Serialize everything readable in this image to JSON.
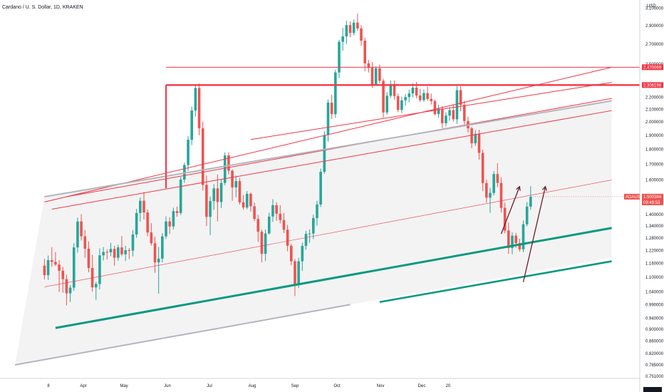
{
  "header": {
    "title": "Cardano / U. S. Dollar, 1D, KRAKEN",
    "currency": "USD"
  },
  "chart_data": {
    "type": "candlestick",
    "symbol": "ADAUSD",
    "y_scale": "log",
    "ylim": [
      0.745,
      3.2
    ],
    "y_ticks": [
      {
        "v": 3.1,
        "label": "3.100000"
      },
      {
        "v": 2.9,
        "label": "2.900000"
      },
      {
        "v": 2.7,
        "label": "2.700000"
      },
      {
        "v": 2.5,
        "label": "2.500000"
      },
      {
        "v": 2.3,
        "label": "2.300000"
      },
      {
        "v": 2.2,
        "label": "2.200000"
      },
      {
        "v": 2.1,
        "label": "2.100000"
      },
      {
        "v": 2.0,
        "label": "2.000000"
      },
      {
        "v": 1.9,
        "label": "1.900000"
      },
      {
        "v": 1.8,
        "label": "1.800000"
      },
      {
        "v": 1.7,
        "label": "1.700000"
      },
      {
        "v": 1.6,
        "label": "1.600000"
      },
      {
        "v": 1.4,
        "label": "1.400000"
      },
      {
        "v": 1.34,
        "label": "1.340000"
      },
      {
        "v": 1.28,
        "label": "1.280000"
      },
      {
        "v": 1.22,
        "label": "1.220000"
      },
      {
        "v": 1.16,
        "label": "1.160000"
      },
      {
        "v": 1.1,
        "label": "1.100000"
      },
      {
        "v": 1.04,
        "label": "1.040000"
      },
      {
        "v": 0.99,
        "label": "0.990000"
      },
      {
        "v": 0.94,
        "label": "0.940000"
      },
      {
        "v": 0.9,
        "label": "0.900000"
      },
      {
        "v": 0.86,
        "label": "0.860000"
      },
      {
        "v": 0.82,
        "label": "0.820000"
      },
      {
        "v": 0.785,
        "label": "0.785000"
      },
      {
        "v": 0.751,
        "label": "0.751000"
      }
    ],
    "x_labels": [
      "8",
      "Apr",
      "May",
      "Jun",
      "Jul",
      "Aug",
      "Sep",
      "Oct",
      "Nov",
      "Dec",
      "20"
    ],
    "colors": {
      "up": "#26a69a",
      "down": "#ef5350",
      "line_red": "#f23645",
      "line_teal": "#089981",
      "line_gray": "#b2b5be",
      "arrow": "#6d1b2b",
      "channel_fill": "#f0f0f0"
    },
    "tags": [
      {
        "label": "2.470069",
        "value": 2.470069
      },
      {
        "label": "2.306198",
        "value": 2.306198
      },
      {
        "label": "ADAUSD",
        "value": 1.500384
      },
      {
        "label": "1.500384",
        "value": 1.500384
      },
      {
        "label": "09:49:53",
        "value": 1.500384
      }
    ],
    "candles": [
      {
        "o": 1.15,
        "h": 1.181,
        "l": 1.091,
        "c": 1.109
      },
      {
        "o": 1.109,
        "h": 1.196,
        "l": 1.089,
        "c": 1.175
      },
      {
        "o": 1.175,
        "h": 1.235,
        "l": 1.146,
        "c": 1.167
      },
      {
        "o": 1.167,
        "h": 1.212,
        "l": 1.149,
        "c": 1.155
      },
      {
        "o": 1.155,
        "h": 1.175,
        "l": 1.039,
        "c": 1.128
      },
      {
        "o": 1.128,
        "h": 1.145,
        "l": 1.036,
        "c": 1.092
      },
      {
        "o": 1.092,
        "h": 1.111,
        "l": 0.987,
        "c": 1.034
      },
      {
        "o": 1.034,
        "h": 1.068,
        "l": 1.0,
        "c": 1.057
      },
      {
        "o": 1.057,
        "h": 1.254,
        "l": 1.044,
        "c": 1.234
      },
      {
        "o": 1.234,
        "h": 1.384,
        "l": 1.209,
        "c": 1.364
      },
      {
        "o": 1.364,
        "h": 1.403,
        "l": 1.267,
        "c": 1.288
      },
      {
        "o": 1.288,
        "h": 1.319,
        "l": 1.186,
        "c": 1.228
      },
      {
        "o": 1.228,
        "h": 1.263,
        "l": 1.121,
        "c": 1.14
      },
      {
        "o": 1.14,
        "h": 1.199,
        "l": 1.041,
        "c": 1.058
      },
      {
        "o": 1.058,
        "h": 1.081,
        "l": 1.008,
        "c": 1.072
      },
      {
        "o": 1.072,
        "h": 1.229,
        "l": 1.05,
        "c": 1.197
      },
      {
        "o": 1.197,
        "h": 1.236,
        "l": 1.174,
        "c": 1.213
      },
      {
        "o": 1.213,
        "h": 1.225,
        "l": 1.178,
        "c": 1.211
      },
      {
        "o": 1.211,
        "h": 1.256,
        "l": 1.193,
        "c": 1.227
      },
      {
        "o": 1.227,
        "h": 1.242,
        "l": 1.15,
        "c": 1.186
      },
      {
        "o": 1.186,
        "h": 1.247,
        "l": 1.172,
        "c": 1.234
      },
      {
        "o": 1.234,
        "h": 1.289,
        "l": 1.193,
        "c": 1.202
      },
      {
        "o": 1.202,
        "h": 1.242,
        "l": 1.171,
        "c": 1.221
      },
      {
        "o": 1.221,
        "h": 1.231,
        "l": 1.18,
        "c": 1.219
      },
      {
        "o": 1.219,
        "h": 1.319,
        "l": 1.192,
        "c": 1.297
      },
      {
        "o": 1.297,
        "h": 1.431,
        "l": 1.281,
        "c": 1.409
      },
      {
        "o": 1.409,
        "h": 1.496,
        "l": 1.363,
        "c": 1.477
      },
      {
        "o": 1.477,
        "h": 1.527,
        "l": 1.374,
        "c": 1.412
      },
      {
        "o": 1.412,
        "h": 1.428,
        "l": 1.288,
        "c": 1.307
      },
      {
        "o": 1.307,
        "h": 1.355,
        "l": 1.243,
        "c": 1.254
      },
      {
        "o": 1.254,
        "h": 1.285,
        "l": 1.119,
        "c": 1.165
      },
      {
        "o": 1.165,
        "h": 1.236,
        "l": 1.033,
        "c": 1.182
      },
      {
        "o": 1.182,
        "h": 1.304,
        "l": 1.165,
        "c": 1.288
      },
      {
        "o": 1.288,
        "h": 1.391,
        "l": 1.275,
        "c": 1.364
      },
      {
        "o": 1.364,
        "h": 1.386,
        "l": 1.3,
        "c": 1.338
      },
      {
        "o": 1.338,
        "h": 1.438,
        "l": 1.322,
        "c": 1.419
      },
      {
        "o": 1.419,
        "h": 1.444,
        "l": 1.389,
        "c": 1.409
      },
      {
        "o": 1.409,
        "h": 1.619,
        "l": 1.398,
        "c": 1.603
      },
      {
        "o": 1.603,
        "h": 1.71,
        "l": 1.583,
        "c": 1.695
      },
      {
        "o": 1.695,
        "h": 1.894,
        "l": 1.657,
        "c": 1.868
      },
      {
        "o": 1.868,
        "h": 2.123,
        "l": 1.83,
        "c": 2.091
      },
      {
        "o": 2.091,
        "h": 2.3,
        "l": 2.042,
        "c": 2.28
      },
      {
        "o": 2.28,
        "h": 2.319,
        "l": 1.901,
        "c": 1.952
      },
      {
        "o": 1.952,
        "h": 2.003,
        "l": 1.536,
        "c": 1.57
      },
      {
        "o": 1.57,
        "h": 1.627,
        "l": 1.34,
        "c": 1.388
      },
      {
        "o": 1.388,
        "h": 1.501,
        "l": 1.294,
        "c": 1.475
      },
      {
        "o": 1.475,
        "h": 1.575,
        "l": 1.426,
        "c": 1.549
      },
      {
        "o": 1.549,
        "h": 1.634,
        "l": 1.364,
        "c": 1.47
      },
      {
        "o": 1.47,
        "h": 1.603,
        "l": 1.436,
        "c": 1.582
      },
      {
        "o": 1.582,
        "h": 1.779,
        "l": 1.568,
        "c": 1.759
      },
      {
        "o": 1.759,
        "h": 1.779,
        "l": 1.634,
        "c": 1.658
      },
      {
        "o": 1.658,
        "h": 1.667,
        "l": 1.477,
        "c": 1.555
      },
      {
        "o": 1.555,
        "h": 1.627,
        "l": 1.497,
        "c": 1.593
      },
      {
        "o": 1.593,
        "h": 1.613,
        "l": 1.456,
        "c": 1.468
      },
      {
        "o": 1.468,
        "h": 1.509,
        "l": 1.427,
        "c": 1.439
      },
      {
        "o": 1.439,
        "h": 1.533,
        "l": 1.429,
        "c": 1.517
      },
      {
        "o": 1.517,
        "h": 1.525,
        "l": 1.416,
        "c": 1.446
      },
      {
        "o": 1.446,
        "h": 1.467,
        "l": 1.366,
        "c": 1.377
      },
      {
        "o": 1.377,
        "h": 1.398,
        "l": 1.261,
        "c": 1.311
      },
      {
        "o": 1.311,
        "h": 1.321,
        "l": 1.165,
        "c": 1.204
      },
      {
        "o": 1.204,
        "h": 1.322,
        "l": 1.171,
        "c": 1.302
      },
      {
        "o": 1.302,
        "h": 1.411,
        "l": 1.298,
        "c": 1.39
      },
      {
        "o": 1.39,
        "h": 1.486,
        "l": 1.362,
        "c": 1.452
      },
      {
        "o": 1.452,
        "h": 1.469,
        "l": 1.367,
        "c": 1.405
      },
      {
        "o": 1.405,
        "h": 1.452,
        "l": 1.353,
        "c": 1.371
      },
      {
        "o": 1.371,
        "h": 1.409,
        "l": 1.304,
        "c": 1.321
      },
      {
        "o": 1.321,
        "h": 1.346,
        "l": 1.216,
        "c": 1.242
      },
      {
        "o": 1.242,
        "h": 1.251,
        "l": 1.152,
        "c": 1.17
      },
      {
        "o": 1.17,
        "h": 1.18,
        "l": 1.023,
        "c": 1.067
      },
      {
        "o": 1.067,
        "h": 1.186,
        "l": 1.055,
        "c": 1.17
      },
      {
        "o": 1.17,
        "h": 1.257,
        "l": 1.127,
        "c": 1.241
      },
      {
        "o": 1.241,
        "h": 1.315,
        "l": 1.223,
        "c": 1.3
      },
      {
        "o": 1.3,
        "h": 1.323,
        "l": 1.257,
        "c": 1.302
      },
      {
        "o": 1.302,
        "h": 1.4,
        "l": 1.274,
        "c": 1.382
      },
      {
        "o": 1.382,
        "h": 1.477,
        "l": 1.342,
        "c": 1.456
      },
      {
        "o": 1.456,
        "h": 1.672,
        "l": 1.442,
        "c": 1.651
      },
      {
        "o": 1.651,
        "h": 1.931,
        "l": 1.638,
        "c": 1.902
      },
      {
        "o": 1.902,
        "h": 2.182,
        "l": 1.853,
        "c": 2.155
      },
      {
        "o": 2.155,
        "h": 2.221,
        "l": 2.024,
        "c": 2.062
      },
      {
        "o": 2.062,
        "h": 2.446,
        "l": 2.033,
        "c": 2.421
      },
      {
        "o": 2.421,
        "h": 2.745,
        "l": 2.368,
        "c": 2.724
      },
      {
        "o": 2.724,
        "h": 2.873,
        "l": 2.633,
        "c": 2.782
      },
      {
        "o": 2.782,
        "h": 2.956,
        "l": 2.7,
        "c": 2.905
      },
      {
        "o": 2.905,
        "h": 2.946,
        "l": 2.774,
        "c": 2.819
      },
      {
        "o": 2.819,
        "h": 2.969,
        "l": 2.792,
        "c": 2.933
      },
      {
        "o": 2.933,
        "h": 3.038,
        "l": 2.841,
        "c": 2.868
      },
      {
        "o": 2.868,
        "h": 2.905,
        "l": 2.685,
        "c": 2.736
      },
      {
        "o": 2.736,
        "h": 2.767,
        "l": 2.431,
        "c": 2.507
      },
      {
        "o": 2.507,
        "h": 2.54,
        "l": 2.42,
        "c": 2.464
      },
      {
        "o": 2.464,
        "h": 2.519,
        "l": 2.283,
        "c": 2.311
      },
      {
        "o": 2.311,
        "h": 2.48,
        "l": 2.3,
        "c": 2.46
      },
      {
        "o": 2.46,
        "h": 2.496,
        "l": 2.321,
        "c": 2.344
      },
      {
        "o": 2.344,
        "h": 2.363,
        "l": 2.034,
        "c": 2.075
      },
      {
        "o": 2.075,
        "h": 2.244,
        "l": 2.058,
        "c": 2.213
      },
      {
        "o": 2.213,
        "h": 2.348,
        "l": 2.195,
        "c": 2.313
      },
      {
        "o": 2.313,
        "h": 2.347,
        "l": 2.181,
        "c": 2.21
      },
      {
        "o": 2.21,
        "h": 2.232,
        "l": 2.077,
        "c": 2.096
      },
      {
        "o": 2.096,
        "h": 2.205,
        "l": 2.07,
        "c": 2.175
      },
      {
        "o": 2.175,
        "h": 2.227,
        "l": 2.132,
        "c": 2.202
      },
      {
        "o": 2.202,
        "h": 2.266,
        "l": 2.157,
        "c": 2.233
      },
      {
        "o": 2.233,
        "h": 2.323,
        "l": 2.199,
        "c": 2.283
      },
      {
        "o": 2.283,
        "h": 2.334,
        "l": 2.191,
        "c": 2.215
      },
      {
        "o": 2.215,
        "h": 2.272,
        "l": 2.16,
        "c": 2.176
      },
      {
        "o": 2.176,
        "h": 2.268,
        "l": 2.162,
        "c": 2.236
      },
      {
        "o": 2.236,
        "h": 2.292,
        "l": 2.17,
        "c": 2.186
      },
      {
        "o": 2.186,
        "h": 2.231,
        "l": 2.139,
        "c": 2.167
      },
      {
        "o": 2.167,
        "h": 2.181,
        "l": 2.052,
        "c": 2.062
      },
      {
        "o": 2.062,
        "h": 2.138,
        "l": 2.033,
        "c": 2.104
      },
      {
        "o": 2.104,
        "h": 2.126,
        "l": 1.955,
        "c": 1.991
      },
      {
        "o": 1.991,
        "h": 2.076,
        "l": 1.965,
        "c": 2.05
      },
      {
        "o": 2.05,
        "h": 2.121,
        "l": 2.01,
        "c": 2.094
      },
      {
        "o": 2.094,
        "h": 2.139,
        "l": 2.003,
        "c": 2.021
      },
      {
        "o": 2.021,
        "h": 2.297,
        "l": 1.985,
        "c": 2.261
      },
      {
        "o": 2.261,
        "h": 2.295,
        "l": 2.084,
        "c": 2.136
      },
      {
        "o": 2.136,
        "h": 2.17,
        "l": 1.982,
        "c": 2.008
      },
      {
        "o": 2.008,
        "h": 2.043,
        "l": 1.921,
        "c": 1.952
      },
      {
        "o": 1.952,
        "h": 1.962,
        "l": 1.808,
        "c": 1.843
      },
      {
        "o": 1.843,
        "h": 1.939,
        "l": 1.824,
        "c": 1.911
      },
      {
        "o": 1.911,
        "h": 1.941,
        "l": 1.731,
        "c": 1.776
      },
      {
        "o": 1.776,
        "h": 1.798,
        "l": 1.533,
        "c": 1.581
      },
      {
        "o": 1.581,
        "h": 1.603,
        "l": 1.466,
        "c": 1.495
      },
      {
        "o": 1.495,
        "h": 1.552,
        "l": 1.409,
        "c": 1.522
      },
      {
        "o": 1.522,
        "h": 1.655,
        "l": 1.508,
        "c": 1.637
      },
      {
        "o": 1.637,
        "h": 1.707,
        "l": 1.557,
        "c": 1.582
      },
      {
        "o": 1.582,
        "h": 1.615,
        "l": 1.412,
        "c": 1.437
      },
      {
        "o": 1.437,
        "h": 1.466,
        "l": 1.303,
        "c": 1.317
      },
      {
        "o": 1.317,
        "h": 1.359,
        "l": 1.204,
        "c": 1.231
      },
      {
        "o": 1.231,
        "h": 1.308,
        "l": 1.202,
        "c": 1.291
      },
      {
        "o": 1.291,
        "h": 1.305,
        "l": 1.232,
        "c": 1.255
      },
      {
        "o": 1.255,
        "h": 1.276,
        "l": 1.214,
        "c": 1.225
      },
      {
        "o": 1.225,
        "h": 1.369,
        "l": 1.212,
        "c": 1.349
      },
      {
        "o": 1.349,
        "h": 1.47,
        "l": 1.338,
        "c": 1.444
      },
      {
        "o": 1.444,
        "h": 1.562,
        "l": 1.427,
        "c": 1.5
      }
    ],
    "lines": [
      {
        "kind": "red",
        "a": [
          0,
          1.47
        ],
        "b": [
          154,
          2.47
        ],
        "w": 1
      },
      {
        "kind": "red",
        "a": [
          0,
          1.06
        ],
        "b": [
          154,
          1.6
        ],
        "w": 0.6
      },
      {
        "kind": "red",
        "a": [
          2,
          1.43
        ],
        "b": [
          154,
          2.09
        ],
        "w": 1
      },
      {
        "kind": "red",
        "a": [
          56,
          1.87
        ],
        "b": [
          154,
          2.33
        ],
        "w": 1
      },
      {
        "kind": "red",
        "a": [
          6,
          1.5
        ],
        "b": [
          154,
          2.19
        ],
        "w": 1
      },
      {
        "kind": "redlevel",
        "value": 2.470069,
        "from": 33,
        "w": 1
      },
      {
        "kind": "redlevel",
        "value": 2.306198,
        "from": 33,
        "w": 2.4
      },
      {
        "kind": "gray",
        "a": [
          -8,
          0.785
        ],
        "b": [
          83,
          0.99
        ],
        "w": 2
      },
      {
        "kind": "gray",
        "a": [
          0,
          1.5
        ],
        "b": [
          154,
          2.17
        ],
        "w": 2
      },
      {
        "kind": "teal",
        "a": [
          3,
          0.905
        ],
        "b": [
          154,
          1.33
        ],
        "w": 3
      },
      {
        "kind": "teal",
        "a": [
          91,
          1.0
        ],
        "b": [
          154,
          1.17
        ],
        "w": 2.6
      }
    ]
  }
}
